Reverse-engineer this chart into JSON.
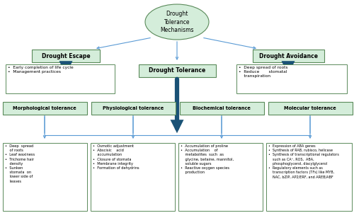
{
  "bg": "#ffffff",
  "green_fc": "#d4edda",
  "green_ec": "#5a8a5a",
  "ellipse_fc": "#d4edda",
  "ellipse_ec": "#5a8a5a",
  "dark_blue": "#1a5276",
  "light_blue": "#5b9bd5",
  "text_color": "#000000",
  "box_ec": "#888888",
  "root_label": "Drought\nTolerance\nMechanisms",
  "escape_label": "Drought Escape",
  "tolerance_label": "Drought Tolerance",
  "avoidance_label": "Drought Avoidance",
  "morph_label": "Morphological tolerance",
  "physio_label": "Physiological tolerance",
  "biochem_label": "Biochemical tolerance",
  "molec_label": "Molecular tolerance",
  "escape_text": "•  Early completion of life cycle\n•  Management practices",
  "avoidance_text": "•  Deep spread of roots\n•  Reduce       stomatal\n    transpiration",
  "morph_text": "•  Deep  spread\n    of roots\n•  Leaf waxiness\n•  Trichome hair\n    density\n•  Sunken\n    stomata  on\n    lower side of\n    leaves",
  "physio_text": "•  Osmotic adjustment\n•  Abscisic    acid\n    accumulation\n•  Closure of stomata\n•  Membrane integrity\n•  Formation of dehydrins",
  "biochem_text": "•  Accumulation of proline\n•  Accumulation    of\n    metabolites  such  as\n    glycine, betaine, mannitol,\n    soluble sugars\n•  Reactive oxygen species\n    production",
  "molec_text": "•  Expression of ABA genes\n•  Synthesis of RAB, rubisco, helicase\n•  Synthesis of transcriptional regulators\n    such as CA⁺, ROS,  ABA,\n    phosphoglycerol, diacylglycerol\n•  Regulatory elements such as\n    transcription factors (TFs) like MYB,\n    NAC, bZIP, AP2/ERF, and AREB/ABF"
}
